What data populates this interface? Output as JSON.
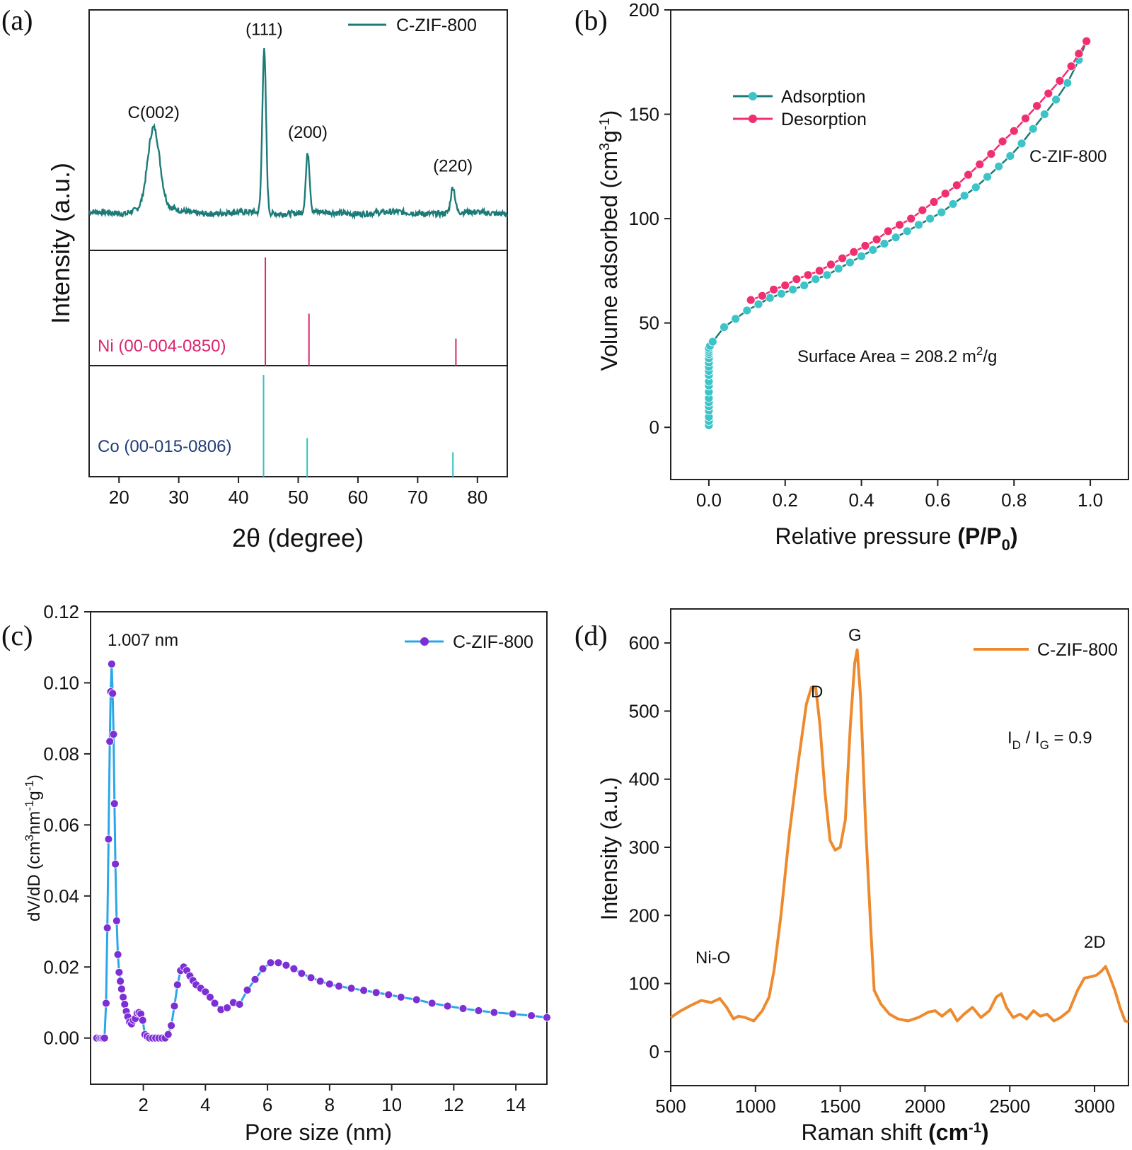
{
  "chart_data": [
    {
      "panel": "(a)",
      "type": "line",
      "xlabel": "2θ (degree)",
      "ylabel": "Intensity (a.u.)",
      "xlim": [
        15,
        85
      ],
      "xticks": [
        20,
        30,
        40,
        50,
        60,
        70,
        80
      ],
      "series": [
        {
          "name": "C-ZIF-800",
          "color": "#1c7b78",
          "peaks": [
            {
              "label": "C(002)",
              "x": 25.8,
              "height": 0.4,
              "width": 1.4
            },
            {
              "label": "(111)",
              "x": 44.3,
              "height": 0.82,
              "width": 0.45
            },
            {
              "label": "(200)",
              "x": 51.6,
              "height": 0.3,
              "width": 0.45
            },
            {
              "label": "(220)",
              "x": 75.9,
              "height": 0.13,
              "width": 0.5
            }
          ]
        }
      ],
      "references": [
        {
          "name": "Ni (00-004-0850)",
          "color": "#d9266f",
          "lines": [
            {
              "x": 44.5,
              "rel": 1.0
            },
            {
              "x": 51.8,
              "rel": 0.48
            },
            {
              "x": 76.4,
              "rel": 0.25
            }
          ]
        },
        {
          "name": "Co (00-015-0806)",
          "color": "#35c3c3",
          "label_color": "#1f3c78",
          "lines": [
            {
              "x": 44.2,
              "rel": 1.0
            },
            {
              "x": 51.5,
              "rel": 0.38
            },
            {
              "x": 75.9,
              "rel": 0.24
            }
          ]
        }
      ],
      "legend": "top-right"
    },
    {
      "panel": "(b)",
      "type": "line",
      "xlabel_main": "Relative pressure ",
      "xlabel_paren": "(P/P",
      "xlabel_sub": "0",
      "xlabel_close": ")",
      "ylabel_main": "Volume adsorbed (cm",
      "ylabel_sup": "3",
      "ylabel_mid": "g",
      "ylabel_sup2": "-1",
      "ylabel_close": ")",
      "xlim": [
        -0.1,
        1.1
      ],
      "ylim": [
        -25,
        200
      ],
      "xticks": [
        0.0,
        0.2,
        0.4,
        0.6,
        0.8,
        1.0
      ],
      "yticks": [
        0,
        50,
        100,
        150,
        200
      ],
      "sample_label": "C-ZIF-800",
      "annotation_main": "Surface Area = 208.2 m",
      "annotation_sup": "2",
      "annotation_tail": "/g",
      "series": [
        {
          "name": "Adsorption",
          "color": "#3cc4c9",
          "line_color": "#1c7b78",
          "x": [
            0,
            0,
            0,
            0,
            0,
            0,
            0,
            0,
            0,
            0,
            0,
            0,
            0,
            0,
            0,
            0,
            0,
            0,
            0,
            0.003,
            0.01,
            0.04,
            0.07,
            0.1,
            0.13,
            0.16,
            0.19,
            0.22,
            0.25,
            0.28,
            0.31,
            0.34,
            0.37,
            0.4,
            0.43,
            0.46,
            0.49,
            0.52,
            0.55,
            0.58,
            0.61,
            0.64,
            0.67,
            0.7,
            0.73,
            0.76,
            0.79,
            0.82,
            0.85,
            0.88,
            0.91,
            0.94,
            0.97,
            0.99
          ],
          "y": [
            1,
            3,
            5,
            8,
            10,
            12,
            14,
            17,
            20,
            22,
            25,
            27,
            29,
            31,
            33,
            35,
            36,
            37,
            38,
            39,
            41,
            48,
            52,
            56,
            59,
            62,
            64,
            66,
            68,
            71,
            73,
            76,
            79,
            82,
            85,
            88,
            91,
            94,
            97,
            100,
            103,
            107,
            111,
            115,
            120,
            125,
            130,
            136,
            143,
            150,
            157,
            165,
            176,
            185
          ]
        },
        {
          "name": "Desorption",
          "color": "#ef2f6f",
          "line_color": "#ef2f6f",
          "x": [
            0.11,
            0.14,
            0.17,
            0.2,
            0.23,
            0.26,
            0.29,
            0.32,
            0.35,
            0.38,
            0.41,
            0.44,
            0.47,
            0.5,
            0.53,
            0.56,
            0.59,
            0.62,
            0.65,
            0.68,
            0.71,
            0.74,
            0.77,
            0.8,
            0.83,
            0.86,
            0.89,
            0.92,
            0.95,
            0.97,
            0.99
          ],
          "y": [
            61,
            63,
            66,
            68,
            71,
            73,
            75,
            78,
            81,
            84,
            87,
            90,
            94,
            97,
            100,
            104,
            108,
            112,
            116,
            121,
            126,
            131,
            137,
            142,
            148,
            154,
            160,
            166,
            173,
            179,
            185
          ]
        }
      ],
      "legend": "top-left"
    },
    {
      "panel": "(c)",
      "type": "line",
      "xlabel": "Pore size (nm)",
      "ylabel_main": "dV/dD (cm",
      "ylabel_sup": "3",
      "ylabel_mid": "nm",
      "ylabel_sup2": "-1",
      "ylabel_mid2": "g",
      "ylabel_sup3": "-1",
      "ylabel_close": ")",
      "xlim": [
        0.3,
        15
      ],
      "ylim": [
        -0.013,
        0.12
      ],
      "xticks": [
        2,
        4,
        6,
        8,
        10,
        12,
        14
      ],
      "yticks": [
        0.0,
        0.02,
        0.04,
        0.06,
        0.08,
        0.1,
        0.12
      ],
      "ytick_labels": [
        "0.00",
        "0.02",
        "0.04",
        "0.06",
        "0.08",
        "0.10",
        "0.12"
      ],
      "annotation": "1.007 nm",
      "series": [
        {
          "name": "C-ZIF-800",
          "color": "#7d2fd6",
          "line_color": "#2ba7e8",
          "x": [
            0.5,
            0.6,
            0.65,
            0.7,
            0.75,
            0.8,
            0.84,
            0.88,
            0.92,
            0.95,
            0.98,
            1.01,
            1.04,
            1.07,
            1.1,
            1.14,
            1.18,
            1.22,
            1.26,
            1.3,
            1.35,
            1.4,
            1.45,
            1.5,
            1.56,
            1.62,
            1.68,
            1.74,
            1.8,
            1.86,
            1.92,
            1.98,
            2.05,
            2.12,
            2.2,
            2.3,
            2.4,
            2.5,
            2.6,
            2.7,
            2.8,
            2.9,
            3.0,
            3.1,
            3.2,
            3.3,
            3.4,
            3.5,
            3.6,
            3.7,
            3.85,
            4.0,
            4.15,
            4.3,
            4.5,
            4.7,
            4.9,
            5.1,
            5.35,
            5.6,
            5.85,
            6.1,
            6.35,
            6.6,
            6.85,
            7.1,
            7.4,
            7.7,
            8.0,
            8.3,
            8.7,
            9.1,
            9.5,
            9.9,
            10.3,
            10.8,
            11.3,
            11.8,
            12.3,
            12.8,
            13.3,
            13.9,
            14.5,
            15.0
          ],
          "y": [
            0,
            0,
            0,
            0,
            0,
            0.0098,
            0.031,
            0.056,
            0.0835,
            0.0975,
            0.1053,
            0.097,
            0.0855,
            0.066,
            0.049,
            0.033,
            0.0235,
            0.0185,
            0.016,
            0.0138,
            0.0115,
            0.0095,
            0.0075,
            0.006,
            0.0045,
            0.004,
            0.005,
            0.0055,
            0.007,
            0.0072,
            0.0068,
            0.005,
            0.001,
            0.0005,
            0,
            0,
            0,
            0,
            0,
            0,
            0.001,
            0.0035,
            0.009,
            0.015,
            0.019,
            0.02,
            0.019,
            0.0175,
            0.0162,
            0.015,
            0.014,
            0.013,
            0.0115,
            0.0098,
            0.008,
            0.0085,
            0.01,
            0.0095,
            0.0135,
            0.0165,
            0.0195,
            0.0212,
            0.0212,
            0.0205,
            0.0195,
            0.0182,
            0.017,
            0.016,
            0.0152,
            0.0146,
            0.014,
            0.0134,
            0.0128,
            0.0122,
            0.0115,
            0.0108,
            0.0098,
            0.009,
            0.0083,
            0.0077,
            0.0072,
            0.0068,
            0.0063,
            0.0058
          ]
        }
      ],
      "legend": "top-right"
    },
    {
      "panel": "(d)",
      "type": "line",
      "xlabel_main": "Raman shift ",
      "xlabel_paren": "(cm",
      "xlabel_sup": "-1",
      "xlabel_close": ")",
      "ylabel": "Intensity (a.u.)",
      "xlim": [
        500,
        3200
      ],
      "ylim": [
        -50,
        650
      ],
      "xticks": [
        500,
        1000,
        1500,
        2000,
        2500,
        3000
      ],
      "yticks": [
        0,
        100,
        200,
        300,
        400,
        500,
        600
      ],
      "annotations": [
        "D",
        "G",
        "Ni-O",
        "2D"
      ],
      "ratio_I1": "I",
      "ratio_sub1": "D",
      "ratio_slash": " / I",
      "ratio_sub2": "G",
      "ratio_value": " = 0.9",
      "series": [
        {
          "name": "C-ZIF-800",
          "color": "#ee8a2e",
          "x": [
            500,
            560,
            620,
            680,
            740,
            790,
            830,
            870,
            900,
            940,
            990,
            1040,
            1080,
            1110,
            1150,
            1200,
            1250,
            1300,
            1330,
            1355,
            1380,
            1410,
            1440,
            1470,
            1500,
            1530,
            1560,
            1585,
            1600,
            1620,
            1650,
            1680,
            1700,
            1740,
            1790,
            1840,
            1900,
            1960,
            2020,
            2060,
            2100,
            2150,
            2190,
            2230,
            2280,
            2330,
            2380,
            2420,
            2450,
            2480,
            2520,
            2560,
            2600,
            2640,
            2680,
            2720,
            2760,
            2800,
            2850,
            2900,
            2940,
            2980,
            3010,
            3040,
            3065,
            3090,
            3120,
            3150,
            3180,
            3200
          ],
          "y": [
            50,
            60,
            68,
            75,
            72,
            78,
            65,
            48,
            52,
            50,
            45,
            60,
            80,
            120,
            200,
            320,
            420,
            510,
            535,
            535,
            480,
            380,
            310,
            296,
            300,
            340,
            480,
            570,
            590,
            520,
            330,
            180,
            90,
            70,
            55,
            48,
            45,
            50,
            58,
            60,
            52,
            62,
            45,
            55,
            65,
            50,
            60,
            80,
            85,
            65,
            50,
            55,
            48,
            60,
            52,
            55,
            45,
            50,
            60,
            90,
            108,
            110,
            112,
            118,
            125,
            110,
            90,
            65,
            45,
            44
          ]
        }
      ],
      "legend": "top-right"
    }
  ]
}
